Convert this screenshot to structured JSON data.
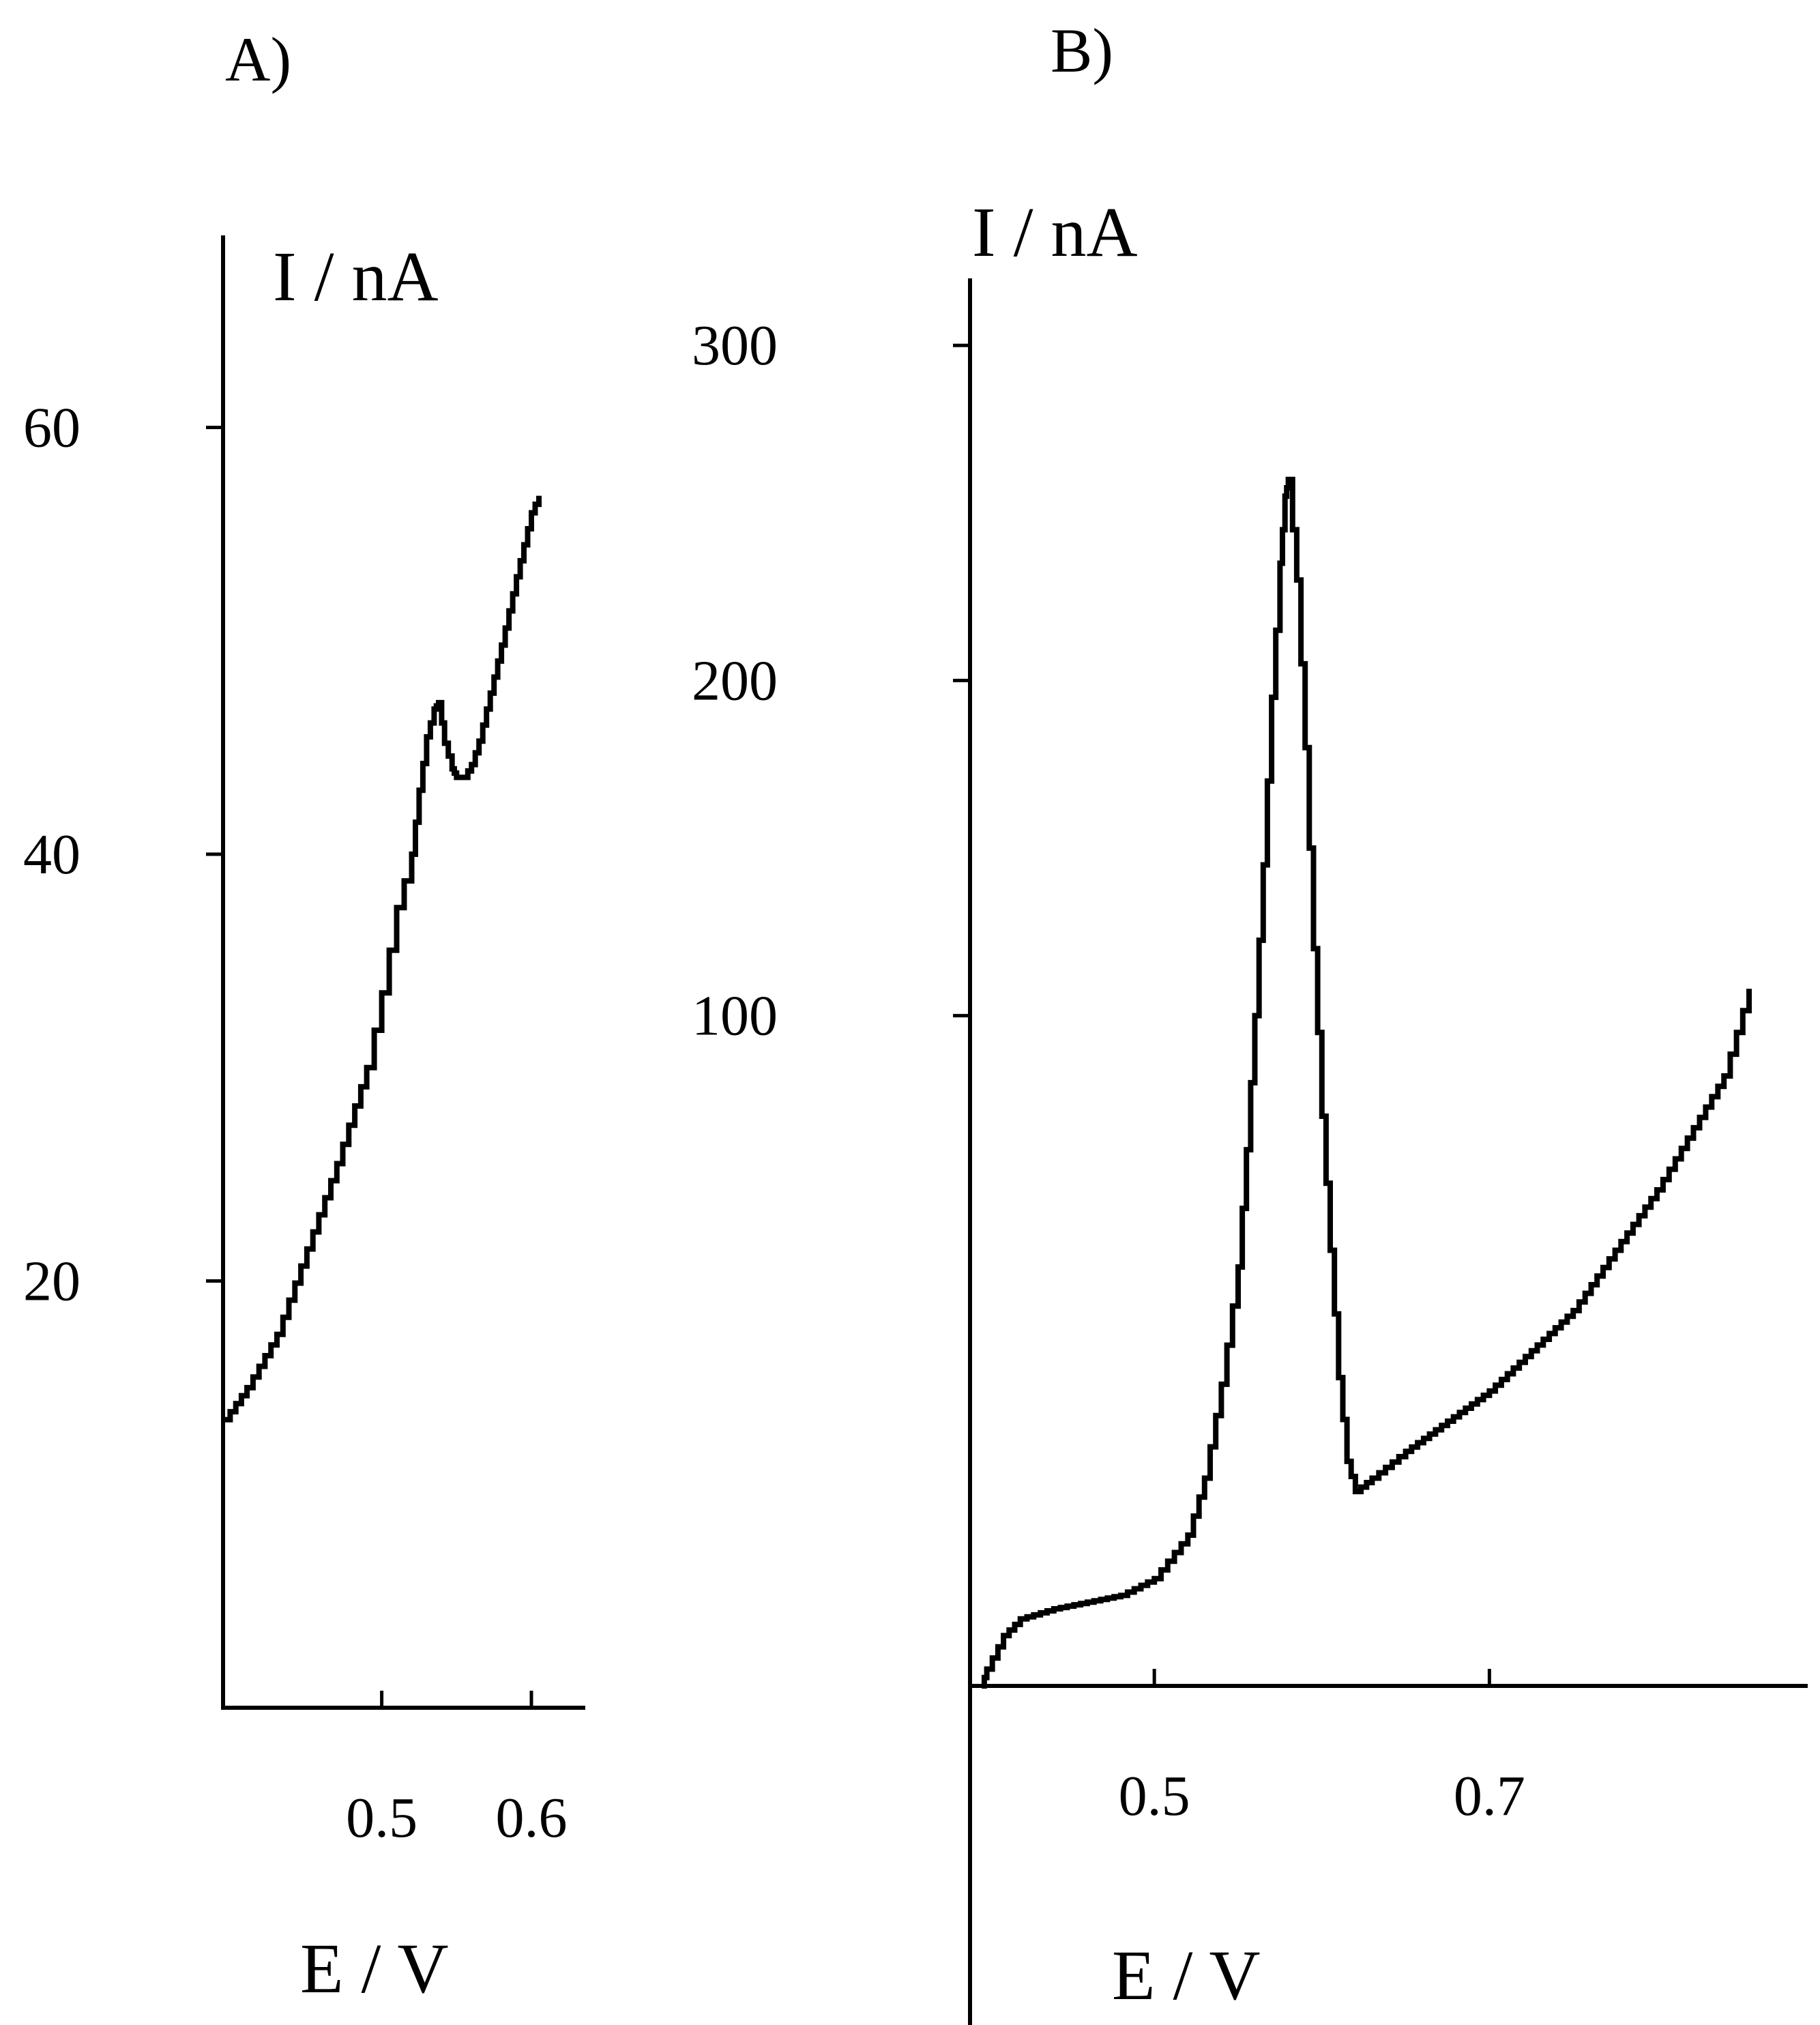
{
  "chart_data": [
    {
      "panel": "A)",
      "type": "line",
      "ylabel": "I / nA",
      "xlabel": "E / V",
      "y_ticks": [
        20,
        40,
        60
      ],
      "y_tick_labels": [
        "20",
        "40",
        "60"
      ],
      "x_ticks": [
        0.5,
        0.6
      ],
      "x_tick_labels": [
        "0.5",
        "0.6"
      ],
      "xlim": [
        0.394,
        0.636
      ],
      "ylim": [
        0,
        69
      ],
      "grid": false,
      "series": [
        {
          "step": true,
          "x": [
            0.395,
            0.41,
            0.43,
            0.45,
            0.47,
            0.49,
            0.5,
            0.51,
            0.52,
            0.525,
            0.53,
            0.535,
            0.538,
            0.542,
            0.547,
            0.55,
            0.555,
            0.56,
            0.565,
            0.57,
            0.575,
            0.58,
            0.585,
            0.59,
            0.595,
            0.6,
            0.605
          ],
          "y": [
            13.5,
            15.0,
            17.5,
            21.5,
            25.5,
            30.0,
            33.5,
            37.5,
            40.0,
            43.0,
            45.5,
            46.8,
            47.1,
            45.2,
            44.0,
            43.6,
            43.6,
            44.2,
            45.3,
            46.8,
            48.3,
            49.8,
            51.4,
            53.0,
            54.5,
            56.0,
            56.8
          ]
        }
      ]
    },
    {
      "panel": "B)",
      "type": "line",
      "ylabel": "I / nA",
      "xlabel": "E / V",
      "y_ticks": [
        100,
        200,
        300
      ],
      "y_tick_labels": [
        "100",
        "200",
        "300"
      ],
      "x_ticks": [
        0.5,
        0.7
      ],
      "x_tick_labels": [
        "0.5",
        "0.7"
      ],
      "xlim": [
        0.39,
        0.89
      ],
      "ylim": [
        -100,
        320
      ],
      "grid": false,
      "series": [
        {
          "step": true,
          "x": [
            0.397,
            0.4,
            0.41,
            0.42,
            0.44,
            0.46,
            0.48,
            0.5,
            0.52,
            0.53,
            0.54,
            0.55,
            0.555,
            0.56,
            0.565,
            0.57,
            0.575,
            0.578,
            0.58,
            0.585,
            0.59,
            0.595,
            0.6,
            0.605,
            0.61,
            0.615,
            0.62,
            0.63,
            0.65,
            0.7,
            0.75,
            0.8,
            0.84,
            0.855
          ],
          "y": [
            -100,
            -95,
            -85,
            -80,
            -77,
            -75,
            -73,
            -68,
            -55,
            -38,
            -10,
            25,
            60,
            100,
            145,
            195,
            235,
            255,
            260,
            230,
            180,
            120,
            70,
            30,
            -8,
            -33,
            -42,
            -38,
            -30,
            -12,
            12,
            48,
            82,
            108
          ]
        }
      ]
    }
  ]
}
